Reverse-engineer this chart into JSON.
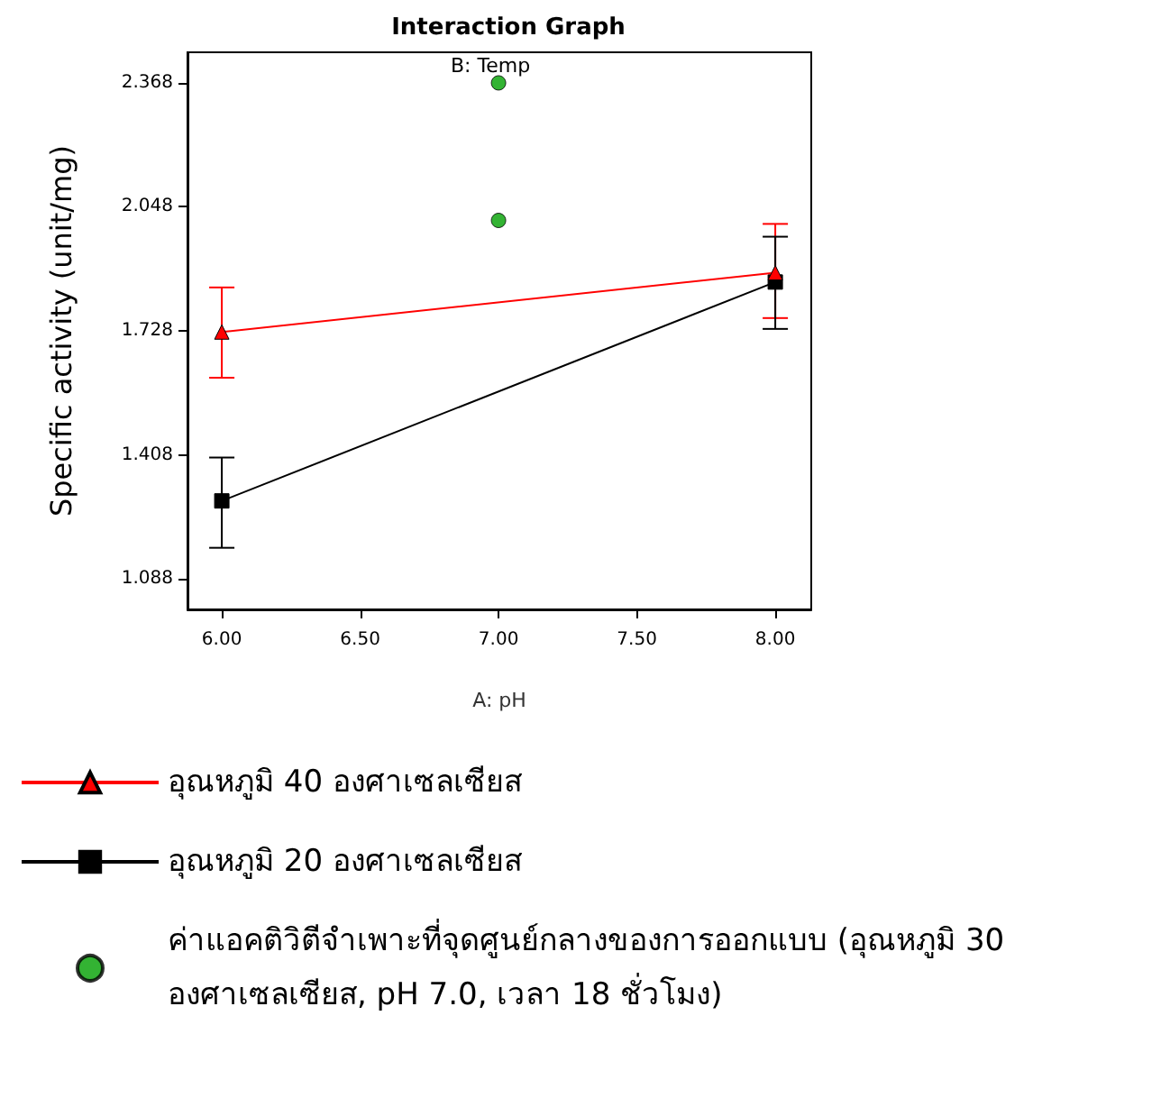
{
  "chart_data": {
    "type": "line",
    "title": "Interaction Graph",
    "legend_title": "B: Temp",
    "xlabel": "A: pH",
    "ylabel": "Specific activity (unit/mg)",
    "x": [
      6,
      8
    ],
    "series": [
      {
        "name": "อุณหภูมิ 40 องศาเซลเซียส",
        "color": "#ff0000",
        "marker": "triangle",
        "values": [
          1.725,
          1.878
        ],
        "errors": [
          [
            1.607,
            1.84
          ],
          [
            1.761,
            2.004
          ]
        ]
      },
      {
        "name": "อุณหภูมิ 20 องศาเซลเซียส",
        "color": "#000000",
        "marker": "square",
        "values": [
          1.289,
          1.854
        ],
        "errors": [
          [
            1.168,
            1.401
          ],
          [
            1.733,
            1.971
          ]
        ]
      },
      {
        "name": "ค่าแอคติวิตีจำเพาะที่จุดศูนย์กลางของการออกแบบ (อุณหภูมิ 30 องศาเซลเซียส, pH 7.0, เวลา 18 ชั่วโมง)",
        "type": "scatter",
        "color": "#00a000",
        "marker": "circle",
        "x": [
          7,
          7
        ],
        "values": [
          2.368,
          2.013
        ]
      }
    ],
    "xlim": [
      5.876,
      8.13
    ],
    "xticks": [
      {
        "value": 6,
        "label": "6.00"
      },
      {
        "value": 6.5,
        "label": "6.50"
      },
      {
        "value": 7,
        "label": "7.00"
      },
      {
        "value": 7.5,
        "label": "7.50"
      },
      {
        "value": 8,
        "label": "8.00"
      }
    ],
    "ylim": [
      1.009,
      2.447
    ],
    "yticks": [
      1.088,
      1.408,
      1.728,
      2.048,
      2.368
    ],
    "grid": false,
    "legend": "bottom"
  }
}
